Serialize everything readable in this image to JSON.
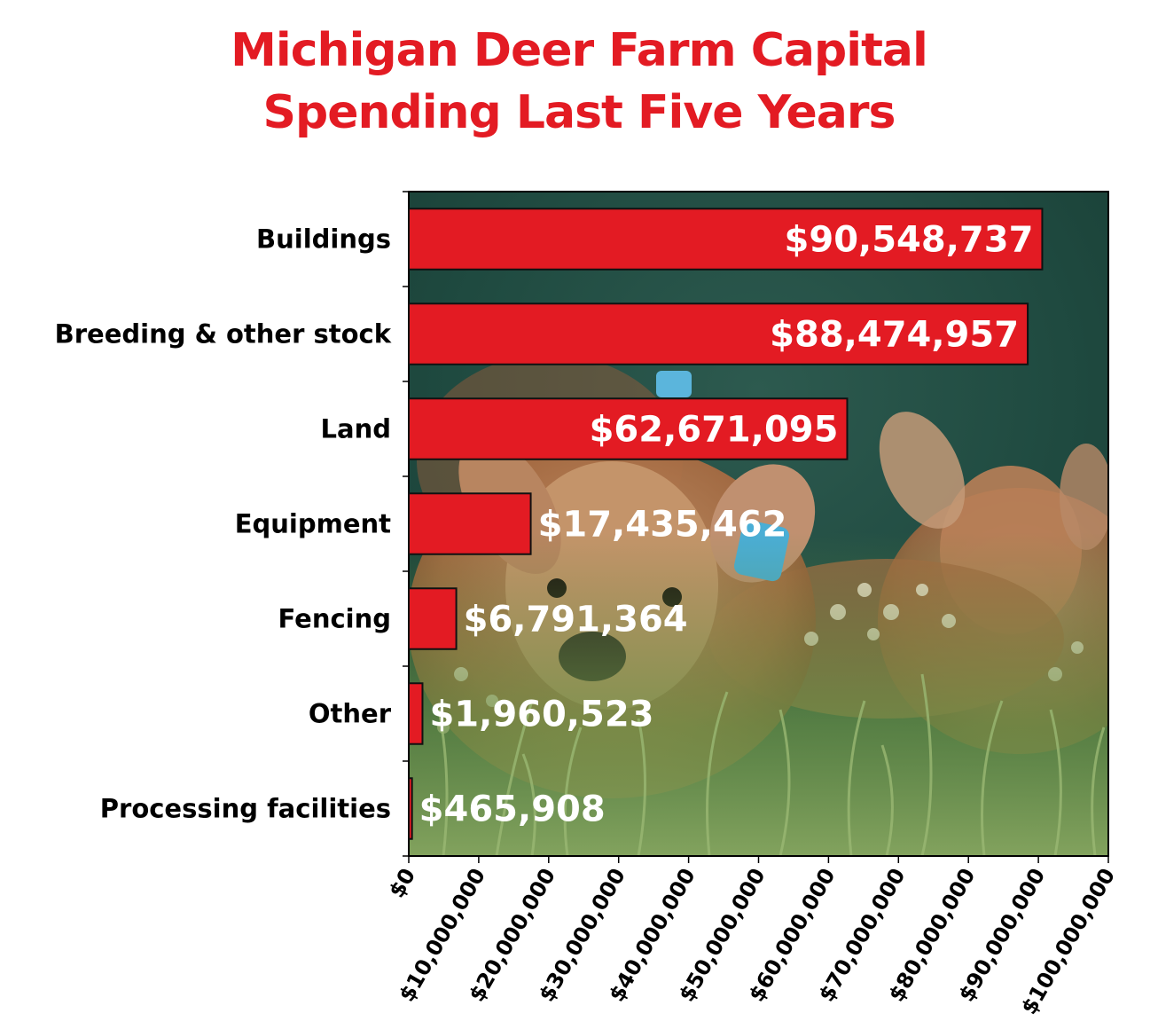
{
  "chart_data": {
    "type": "bar",
    "orientation": "horizontal",
    "title_lines": [
      "Michigan Deer Farm Capital",
      "Spending Last Five Years"
    ],
    "categories": [
      "Buildings",
      "Breeding & other stock",
      "Land",
      "Equipment",
      "Fencing",
      "Other",
      "Processing facilities"
    ],
    "values": [
      90548737,
      88474957,
      62671095,
      17435462,
      6791364,
      1960523,
      465908
    ],
    "value_labels": [
      "$90,548,737",
      "$88,474,957",
      "$62,671,095",
      "$17,435,462",
      "$6,791,364",
      "$1,960,523",
      "$465,908"
    ],
    "xlim": [
      0,
      100000000
    ],
    "x_ticks": [
      0,
      10000000,
      20000000,
      30000000,
      40000000,
      50000000,
      60000000,
      70000000,
      80000000,
      90000000,
      100000000
    ],
    "x_tick_labels": [
      "$0",
      "$10,000,000",
      "$20,000,000",
      "$30,000,000",
      "$40,000,000",
      "$50,000,000",
      "$60,000,000",
      "$70,000,000",
      "$80,000,000",
      "$90,000,000",
      "$100,000,000"
    ],
    "xlabel": "",
    "ylabel": "",
    "grid": false,
    "background": "photograph of spotted fawns in grass",
    "colors": {
      "bar_fill": "#e31b23",
      "bar_stroke": "#111111",
      "title": "#e31b23",
      "value_label": "#ffffff",
      "axis": "#000000"
    }
  }
}
